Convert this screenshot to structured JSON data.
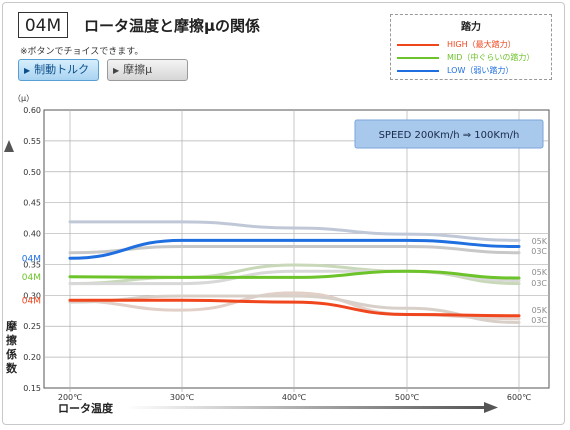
{
  "header": {
    "code": "04M",
    "title": "ロータ温度と摩擦μの関係",
    "note": "※ボタンでチョイスできます。"
  },
  "buttons": {
    "torque": "制動トルク",
    "mu": "摩擦μ"
  },
  "legend": {
    "title": "踏力",
    "items": [
      {
        "label": "HIGH（最大踏力）",
        "color": "#f0461e"
      },
      {
        "label": "MID（中ぐらいの踏力）",
        "color": "#6cc32a"
      },
      {
        "label": "LOW（弱い踏力）",
        "color": "#1f6fe0"
      }
    ]
  },
  "chart_data": {
    "type": "line",
    "speed_label": "SPEED  200Km/h ⇒ 100Km/h",
    "y_unit": "（μ）",
    "ylabel": "摩擦係数",
    "xlabel": "ロータ温度",
    "x_categories": [
      "200℃",
      "300℃",
      "400℃",
      "500℃",
      "600℃"
    ],
    "y_ticks": [
      "0.60",
      "0.55",
      "0.50",
      "0.45",
      "0.40",
      "0.35",
      "0.30",
      "0.25",
      "0.20",
      "0.15"
    ],
    "ylim": [
      0.15,
      0.6
    ],
    "series": [
      {
        "name": "LOW",
        "label": "04M",
        "color": "#1f6fe0",
        "values": [
          0.36,
          0.389,
          0.389,
          0.389,
          0.379
        ]
      },
      {
        "name": "MID",
        "label": "04M",
        "color": "#6cc32a",
        "values": [
          0.33,
          0.329,
          0.329,
          0.339,
          0.328
        ]
      },
      {
        "name": "HIGH",
        "label": "04M",
        "color": "#f0461e",
        "values": [
          0.292,
          0.292,
          0.289,
          0.269,
          0.267
        ]
      }
    ],
    "comparison_series": [
      {
        "color": "#c0c8d8",
        "values": [
          0.419,
          0.419,
          0.409,
          0.399,
          0.389
        ]
      },
      {
        "color": "#c8c8c8",
        "values": [
          0.369,
          0.379,
          0.379,
          0.379,
          0.369
        ]
      },
      {
        "color": "#c8d8b8",
        "values": [
          0.319,
          0.329,
          0.349,
          0.339,
          0.319
        ]
      },
      {
        "color": "#d8d8d8",
        "values": [
          0.319,
          0.319,
          0.339,
          0.339,
          0.324
        ]
      },
      {
        "color": "#e2cfc8",
        "values": [
          0.291,
          0.276,
          0.304,
          0.269,
          0.262
        ]
      },
      {
        "color": "#d8d0c8",
        "values": [
          0.289,
          0.299,
          0.299,
          0.279,
          0.256
        ]
      }
    ],
    "comparison_labels": [
      "05K",
      "03C",
      "05K",
      "03C",
      "05K",
      "03C"
    ]
  }
}
